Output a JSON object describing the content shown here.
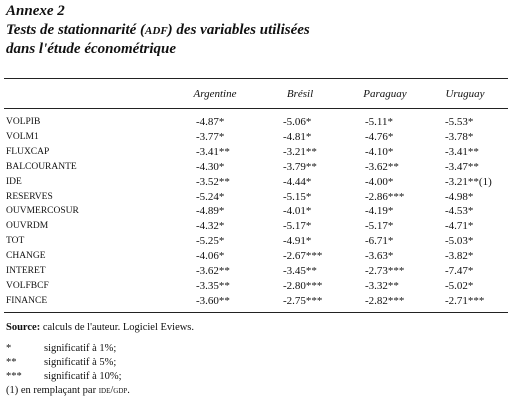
{
  "header": {
    "label": "Annexe 2",
    "title_line1": [
      "Tests de stationnarité (",
      "ADF",
      ") des variables utilisées"
    ],
    "title_line2": "dans l'étude économétrique"
  },
  "table": {
    "columns": [
      "Argentine",
      "Brésil",
      "Paraguay",
      "Uruguay"
    ],
    "rows": [
      [
        "VOLPIB",
        "-4.87*",
        "-5.06*",
        "-5.11*",
        "-5.53*"
      ],
      [
        "VOLM1",
        "-3.77*",
        "-4.81*",
        "-4.76*",
        "-3.78*"
      ],
      [
        "FLUXCAP",
        "-3.41**",
        "-3.21**",
        "-4.10*",
        "-3.41**"
      ],
      [
        "BALCOURANTE",
        "-4.30*",
        "-3.79**",
        "-3.62**",
        "-3.47**"
      ],
      [
        "IDE",
        "-3.52**",
        "-4.44*",
        "-4.00*",
        "-3.21**(1)"
      ],
      [
        "RESERVES",
        "-5.24*",
        "-5.15*",
        "-2.86***",
        "-4.98*"
      ],
      [
        "OUVMERCOSUR",
        "-4.89*",
        "-4.01*",
        "-4.19*",
        "-4.53*"
      ],
      [
        "OUVRDM",
        "-4.32*",
        "-5.17*",
        "-5.17*",
        "-4.71*"
      ],
      [
        "TOT",
        "-5.25*",
        "-4.91*",
        "-6.71*",
        "-5.03*"
      ],
      [
        "CHANGE",
        "-4.06*",
        "-2.67***",
        "-3.63*",
        "-3.82*"
      ],
      [
        "INTERET",
        "-3.62**",
        "-3.45**",
        "-2.73***",
        "-7.47*"
      ],
      [
        "VOLFBCF",
        "-3.35**",
        "-2.80***",
        "-3.32**",
        "-5.02*"
      ],
      [
        "FINANCE",
        "-3.60**",
        "-2.75***",
        "-2.82***",
        "-2.71***"
      ]
    ]
  },
  "notes": {
    "source": [
      "Source:",
      "calculs de l'auteur. Logiciel Eviews."
    ],
    "items": [
      [
        "*",
        "significatif à 1%;"
      ],
      [
        "**",
        "significatif à 5%;"
      ],
      [
        "***",
        "significatif à 10%;"
      ]
    ],
    "footnote": [
      "(1) en remplaçant par ",
      "IDE/GDP",
      "."
    ]
  }
}
